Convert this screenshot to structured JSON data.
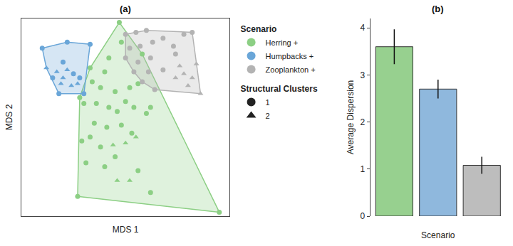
{
  "chart_data": [
    {
      "type": "scatter",
      "title": "(a)",
      "x_label": "MDS 1",
      "y_label": "MDS 2",
      "xlim": [
        0,
        100
      ],
      "ylim": [
        0,
        100
      ],
      "tick_labels": false,
      "legend": "right",
      "series_title": "Scenario",
      "clusters_title": "Structural Clusters",
      "clusters": [
        {
          "name": "1",
          "marker": "circle"
        },
        {
          "name": "2",
          "marker": "triangle"
        }
      ],
      "series": [
        {
          "name": "Herring +",
          "color": "#8ccf84",
          "x": [
            47,
            58,
            62,
            95,
            27,
            28,
            33,
            48,
            42,
            40,
            34,
            38,
            45,
            52,
            56,
            50,
            30,
            36,
            42,
            46,
            54,
            60,
            35,
            41,
            48,
            53,
            29,
            33,
            38,
            31,
            40,
            45,
            56,
            62,
            50,
            55,
            44,
            46,
            52
          ],
          "y": [
            98,
            82,
            55,
            2,
            10,
            60,
            75,
            88,
            80,
            73,
            68,
            65,
            63,
            65,
            67,
            58,
            57,
            57,
            55,
            53,
            55,
            52,
            47,
            45,
            46,
            42,
            38,
            40,
            35,
            27,
            25,
            30,
            23,
            12,
            37,
            40,
            36,
            18,
            18
          ],
          "cluster": [
            "1",
            "1",
            "1",
            "1",
            "1",
            "1",
            "1",
            "1",
            "1",
            "1",
            "1",
            "1",
            "1",
            "1",
            "1",
            "1",
            "1",
            "1",
            "1",
            "1",
            "1",
            "1",
            "1",
            "1",
            "1",
            "1",
            "1",
            "1",
            "1",
            "1",
            "1",
            "1",
            "1",
            "1",
            "2",
            "2",
            "2",
            "2",
            "2"
          ]
        },
        {
          "name": "Humpbacks +",
          "color": "#6aa6d8",
          "x": [
            10,
            33,
            22,
            20,
            25,
            15,
            28,
            30,
            18,
            12,
            17,
            20,
            24,
            22,
            27,
            19
          ],
          "y": [
            85,
            87,
            88,
            78,
            72,
            70,
            70,
            62,
            62,
            75,
            73,
            70,
            66,
            74,
            67,
            67
          ],
          "cluster": [
            "1",
            "1",
            "1",
            "1",
            "1",
            "1",
            "1",
            "1",
            "1",
            "2",
            "2",
            "2",
            "2",
            "2",
            "2",
            "2"
          ]
        },
        {
          "name": "Zooplankton +",
          "color": "#b3b3b3",
          "x": [
            50,
            55,
            60,
            52,
            57,
            63,
            68,
            78,
            73,
            50,
            56,
            62,
            54,
            61,
            68,
            58,
            64,
            74,
            82,
            76,
            84,
            82,
            74,
            86,
            80,
            78
          ],
          "y": [
            92,
            93,
            94,
            85,
            86,
            88,
            90,
            92,
            86,
            80,
            78,
            80,
            73,
            73,
            74,
            68,
            64,
            82,
            93,
            76,
            77,
            70,
            70,
            62,
            66,
            72
          ],
          "cluster": [
            "1",
            "1",
            "1",
            "1",
            "1",
            "1",
            "1",
            "1",
            "1",
            "1",
            "1",
            "1",
            "1",
            "1",
            "1",
            "1",
            "1",
            "1",
            "1",
            "2",
            "2",
            "2",
            "2",
            "2",
            "2",
            "2"
          ]
        }
      ]
    },
    {
      "type": "bar",
      "title": "(b)",
      "x_label": "Scenario",
      "y_label": "Average Dispersion",
      "categories": [
        null,
        null,
        null
      ],
      "values": [
        3.6,
        2.7,
        1.08
      ],
      "errors": [
        0.37,
        0.2,
        0.18
      ],
      "colors": [
        "#97d08f",
        "#8fb8dd",
        "#bdbdbd"
      ],
      "ylim": [
        0,
        4.2
      ],
      "yticks": [
        0,
        1,
        2,
        3,
        4
      ],
      "tick_labels": "y"
    }
  ]
}
